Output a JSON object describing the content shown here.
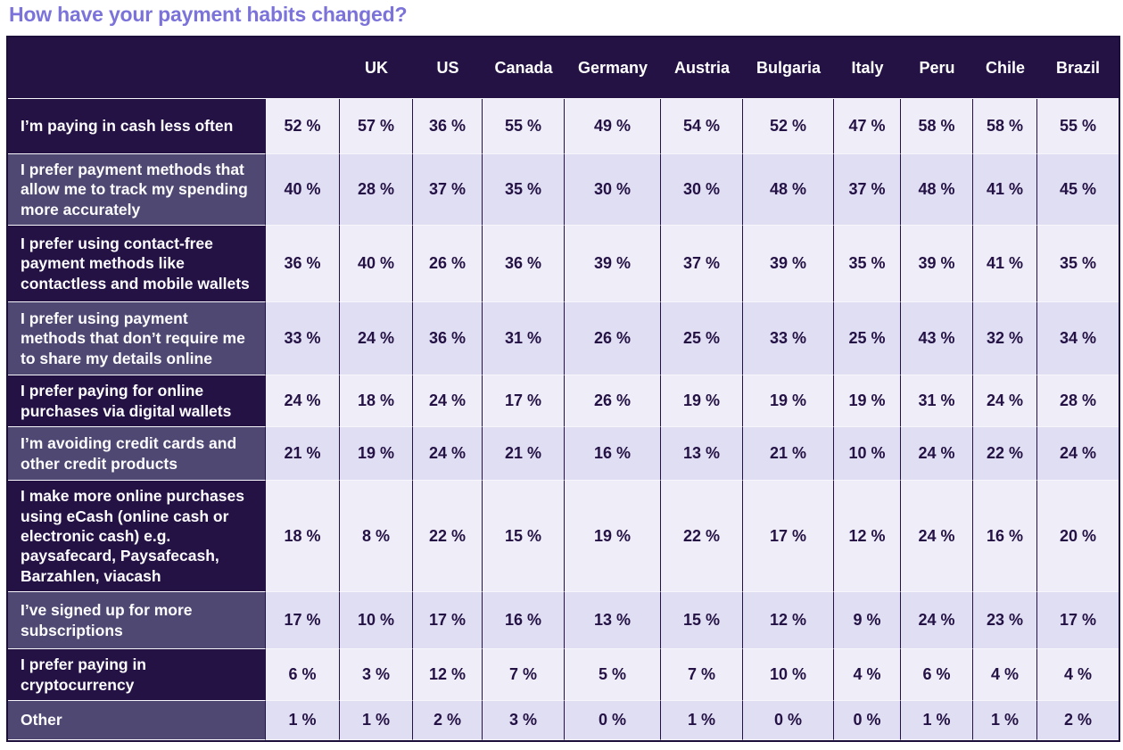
{
  "page_title": "How have your payment habits changed?",
  "colors": {
    "title_text": "#7b73d9",
    "header_bg": "#241245",
    "row_label_dark_bg": "#241245",
    "row_label_light_bg": "#4f4872",
    "cell_bg": "#efedf8",
    "cell_alt_bg": "#e0def2",
    "label_text": "#ffffff",
    "value_text": "#241245"
  },
  "chart_data": {
    "type": "table",
    "title": "How have your payment habits changed?",
    "unit": "%",
    "value_suffix": " %",
    "columns": [
      "",
      "UK",
      "US",
      "Canada",
      "Germany",
      "Austria",
      "Bulgaria",
      "Italy",
      "Peru",
      "Chile",
      "Brazil"
    ],
    "rows": [
      {
        "label": "I’m paying in cash less often",
        "values": [
          52,
          57,
          36,
          55,
          49,
          54,
          52,
          47,
          58,
          58,
          55
        ]
      },
      {
        "label": "I prefer payment methods that allow me to track my spending more accurately",
        "values": [
          40,
          28,
          37,
          35,
          30,
          30,
          48,
          37,
          48,
          41,
          45
        ]
      },
      {
        "label": "I prefer using contact-free payment methods like contactless and mobile wallets",
        "values": [
          36,
          40,
          26,
          36,
          39,
          37,
          39,
          35,
          39,
          41,
          35
        ]
      },
      {
        "label": "I prefer using payment methods that don’t require me to share my details online",
        "values": [
          33,
          24,
          36,
          31,
          26,
          25,
          33,
          25,
          43,
          32,
          34
        ]
      },
      {
        "label": "I prefer paying for online purchases via digital wallets",
        "values": [
          24,
          18,
          24,
          17,
          26,
          19,
          19,
          19,
          31,
          24,
          28
        ]
      },
      {
        "label": "I’m avoiding credit cards and other credit products",
        "values": [
          21,
          19,
          24,
          21,
          16,
          13,
          21,
          10,
          24,
          22,
          24
        ]
      },
      {
        "label": "I make more online purchases using eCash (online cash or electronic cash) e.g. paysafecard, Paysafecash, Barzahlen, viacash",
        "values": [
          18,
          8,
          22,
          15,
          19,
          22,
          17,
          12,
          24,
          16,
          20
        ]
      },
      {
        "label": "I’ve signed up for more subscriptions",
        "values": [
          17,
          10,
          17,
          16,
          13,
          15,
          12,
          9,
          24,
          23,
          17
        ]
      },
      {
        "label": "I prefer paying in cryptocurrency",
        "values": [
          6,
          3,
          12,
          7,
          5,
          7,
          10,
          4,
          6,
          4,
          4
        ]
      },
      {
        "label": "Other",
        "values": [
          1,
          1,
          2,
          3,
          0,
          1,
          0,
          0,
          1,
          1,
          2
        ]
      }
    ]
  }
}
